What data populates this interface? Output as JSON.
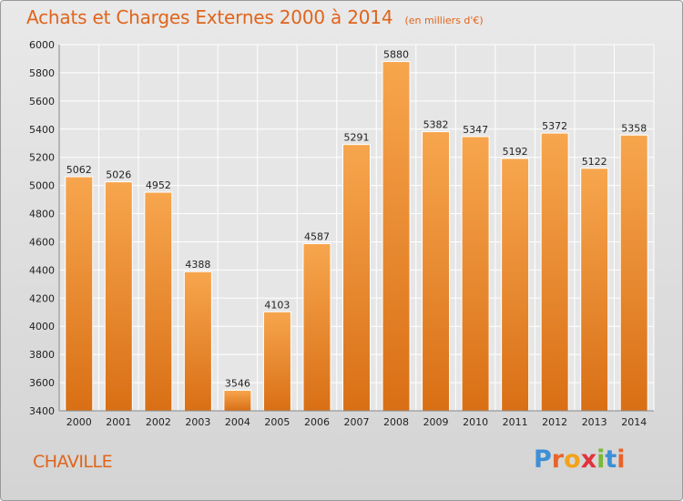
{
  "chart_data": {
    "type": "bar",
    "title": "Achats et Charges Externes 2000 à 2014",
    "subtitle": "(en milliers d'€)",
    "categories": [
      "2000",
      "2001",
      "2002",
      "2003",
      "2004",
      "2005",
      "2006",
      "2007",
      "2008",
      "2009",
      "2010",
      "2011",
      "2012",
      "2013",
      "2014"
    ],
    "values": [
      5062,
      5026,
      4952,
      4388,
      3546,
      4103,
      4587,
      5291,
      5880,
      5382,
      5347,
      5192,
      5372,
      5122,
      5358
    ],
    "ylim": [
      3400,
      6000
    ],
    "yticks": [
      3400,
      3600,
      3800,
      4000,
      4200,
      4400,
      4600,
      4800,
      5000,
      5200,
      5400,
      5600,
      5800,
      6000
    ],
    "grid": true,
    "bar_color": "#f0922f"
  },
  "footer": {
    "place": "CHAVILLE",
    "logo_letters": [
      "P",
      "r",
      "o",
      "x",
      "i",
      "t",
      "i"
    ],
    "logo_colors": [
      "#3d8fd6",
      "#e8642a",
      "#f2a31a",
      "#e2323c",
      "#7ab83a",
      "#3d8fd6",
      "#e8642a"
    ]
  }
}
